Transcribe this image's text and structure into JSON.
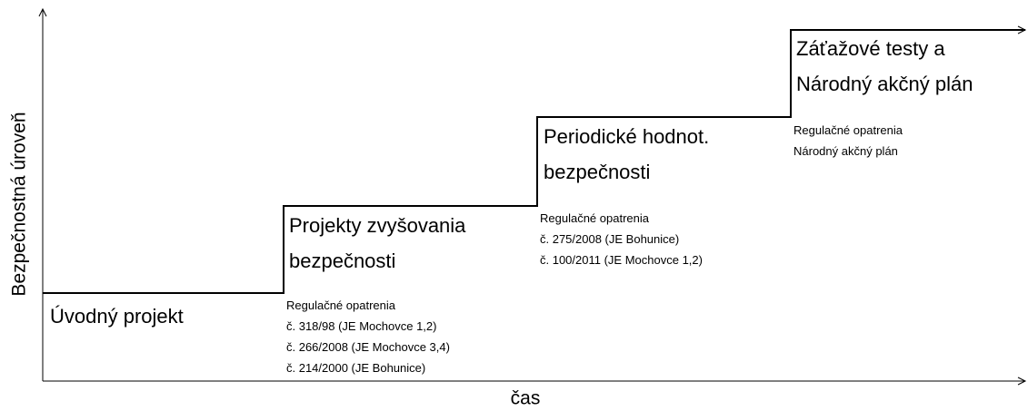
{
  "diagram": {
    "y_axis_label": "Bezpečnostná úroveň",
    "x_axis_label": "čas",
    "stages": [
      {
        "title": [
          "Úvodný projekt"
        ],
        "notes": [
          "Regulačné opatrenia",
          "č. 318/98 (JE Mochovce 1,2)",
          "č. 266/2008 (JE Mochovce 3,4)",
          "č. 214/2000 (JE Bohunice)"
        ]
      },
      {
        "title": [
          "Projekty zvyšovania",
          "bezpečnosti"
        ],
        "notes": [
          "Regulačné opatrenia",
          "č. 275/2008 (JE Bohunice)",
          "č. 100/2011 (JE Mochovce 1,2)"
        ]
      },
      {
        "title": [
          "Periodické hodnot.",
          "bezpečnosti"
        ],
        "notes": [
          "Regulačné opatrenia",
          "Národný akčný plán"
        ]
      },
      {
        "title": [
          "Záťažové testy a",
          "Národný akčný plán"
        ],
        "notes": []
      }
    ]
  }
}
